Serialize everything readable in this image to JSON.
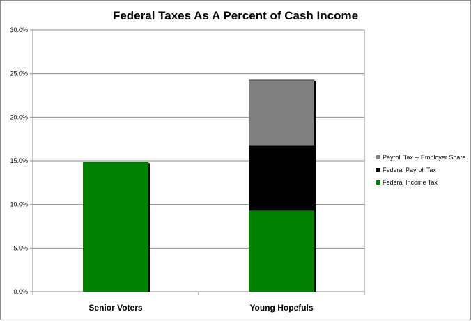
{
  "chart_data": {
    "type": "bar",
    "stacked": true,
    "title": "Federal Taxes As A Percent of Cash Income",
    "categories": [
      "Senior Voters",
      "Young Hopefuls"
    ],
    "series": [
      {
        "name": "Federal Income Tax",
        "values": [
          14.9,
          9.3
        ],
        "color": "#008000"
      },
      {
        "name": "Federal Payroll Tax",
        "values": [
          0,
          7.5
        ],
        "color": "#000000"
      },
      {
        "name": "Payroll Tax -- Employer Share",
        "values": [
          0,
          7.5
        ],
        "color": "#808080"
      }
    ],
    "y_ticks": [
      "0.0%",
      "5.0%",
      "10.0%",
      "15.0%",
      "20.0%",
      "25.0%",
      "30.0%"
    ],
    "ylim": [
      0,
      30
    ],
    "grid": true,
    "legend_position": "right",
    "legend_order": [
      "Payroll Tax -- Employer Share",
      "Federal Payroll Tax",
      "Federal Income Tax"
    ]
  }
}
